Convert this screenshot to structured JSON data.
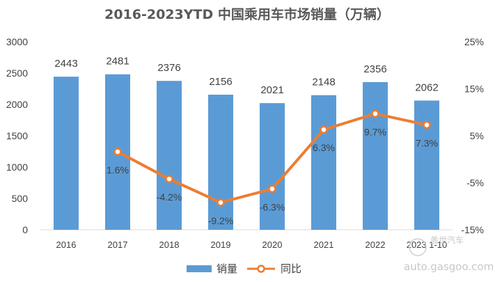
{
  "chart_data": {
    "type": "bar",
    "title": "2016-2023YTD 中国乘用车市场销量（万辆）",
    "categories": [
      "2016",
      "2017",
      "2018",
      "2019",
      "2020",
      "2021",
      "2022",
      "2023 1-10"
    ],
    "series": [
      {
        "name": "销量",
        "type": "bar",
        "axis": "left",
        "color": "#5B9BD5",
        "values": [
          2443,
          2481,
          2376,
          2156,
          2021,
          2148,
          2356,
          2062
        ],
        "labels": [
          "2443",
          "2481",
          "2376",
          "2156",
          "2021",
          "2148",
          "2356",
          "2062"
        ]
      },
      {
        "name": "同比",
        "type": "line",
        "axis": "right",
        "color": "#ED7D31",
        "values": [
          null,
          1.6,
          -4.2,
          -9.2,
          -6.3,
          6.3,
          9.7,
          7.3
        ],
        "labels": [
          "",
          "1.6%",
          "-4.2%",
          "-9.2%",
          "-6.3%",
          "6.3%",
          "9.7%",
          "7.3%"
        ]
      }
    ],
    "y_left": {
      "min": 0,
      "max": 3000,
      "ticks": [
        "0",
        "500",
        "1000",
        "1500",
        "2000",
        "2500",
        "3000"
      ]
    },
    "y_right": {
      "min": -15,
      "max": 25,
      "ticks": [
        "-15%",
        "-5%",
        "5%",
        "15%",
        "25%"
      ]
    },
    "grid": false,
    "legend": "bottom"
  },
  "watermark": {
    "top": "盖世汽车",
    "bottom": "auto.gasgoo.com"
  }
}
